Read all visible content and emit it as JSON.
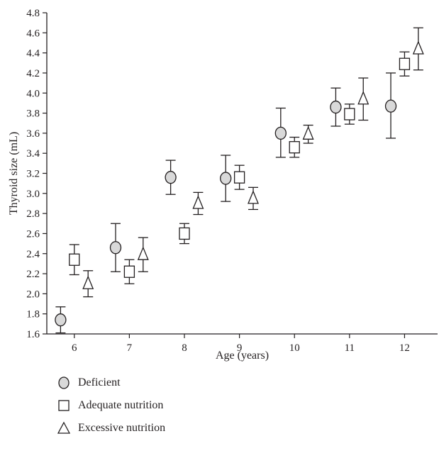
{
  "chart_data": {
    "type": "scatter",
    "xlabel": "Age (years)",
    "ylabel": "Thyroid size (mL)",
    "xlim": [
      5.5,
      12.6
    ],
    "ylim": [
      1.6,
      4.8
    ],
    "x_ticks": [
      6,
      7,
      8,
      9,
      10,
      11,
      12
    ],
    "y_ticks": [
      1.6,
      1.8,
      2.0,
      2.2,
      2.4,
      2.6,
      2.8,
      3.0,
      3.2,
      3.4,
      3.6,
      3.8,
      4.0,
      4.2,
      4.4,
      4.6,
      4.8
    ],
    "x_tick_labels": [
      "6",
      "7",
      "8",
      "9",
      "10",
      "11",
      "12"
    ],
    "y_tick_labels": [
      "1.6",
      "1.8",
      "2.0",
      "2.2",
      "2.4",
      "2.6",
      "2.8",
      "3.0",
      "3.2",
      "3.4",
      "3.6",
      "3.8",
      "4.0",
      "4.2",
      "4.4",
      "4.6",
      "4.8"
    ],
    "grid": false,
    "legend_position": "below",
    "series": [
      {
        "name": "Deficient",
        "marker": "circle",
        "fill": "#d9d9d9",
        "x": [
          5.75,
          6.75,
          7.75,
          8.75,
          9.75,
          10.75,
          11.75
        ],
        "y": [
          1.74,
          2.46,
          3.16,
          3.15,
          3.6,
          3.86,
          3.87
        ],
        "err_low": [
          1.61,
          2.22,
          2.99,
          2.92,
          3.36,
          3.67,
          3.55
        ],
        "err_high": [
          1.87,
          2.7,
          3.33,
          3.38,
          3.85,
          4.05,
          4.2
        ]
      },
      {
        "name": "Adequate nutrition",
        "marker": "square",
        "fill": "#ffffff",
        "x": [
          6.0,
          7.0,
          8.0,
          9.0,
          10.0,
          11.0,
          12.0
        ],
        "y": [
          2.34,
          2.22,
          2.6,
          3.16,
          3.46,
          3.79,
          4.29
        ],
        "err_low": [
          2.19,
          2.1,
          2.5,
          3.04,
          3.36,
          3.69,
          4.17
        ],
        "err_high": [
          2.49,
          2.34,
          2.7,
          3.28,
          3.56,
          3.89,
          4.41
        ]
      },
      {
        "name": "Excessive nutrition",
        "marker": "triangle",
        "fill": "#ffffff",
        "x": [
          6.25,
          7.25,
          8.25,
          9.25,
          10.25,
          11.25,
          12.25
        ],
        "y": [
          2.1,
          2.39,
          2.9,
          2.95,
          3.59,
          3.94,
          4.44
        ],
        "err_low": [
          1.97,
          2.22,
          2.79,
          2.84,
          3.5,
          3.73,
          4.23
        ],
        "err_high": [
          2.23,
          2.56,
          3.01,
          3.06,
          3.68,
          4.15,
          4.65
        ]
      }
    ]
  },
  "legend": {
    "items": [
      {
        "label": "Deficient",
        "marker": "circle"
      },
      {
        "label": "Adequate nutrition",
        "marker": "square"
      },
      {
        "label": "Excessive nutrition",
        "marker": "triangle"
      }
    ]
  }
}
